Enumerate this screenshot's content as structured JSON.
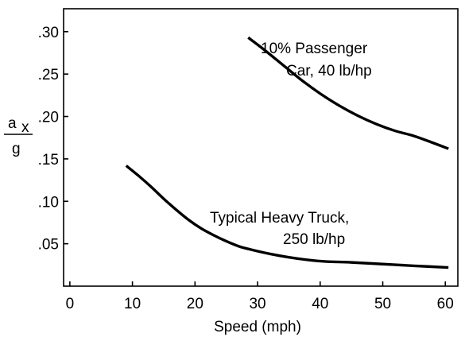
{
  "chart_data": {
    "type": "line",
    "title": "",
    "xlabel": "Speed (mph)",
    "ylabel": {
      "numerator": "a",
      "subscript": "x",
      "denominator": "g"
    },
    "xlim": [
      -1,
      62
    ],
    "ylim": [
      0,
      0.327
    ],
    "x_ticks": [
      {
        "value": 0,
        "label": "0"
      },
      {
        "value": 10,
        "label": "10"
      },
      {
        "value": 20,
        "label": "20"
      },
      {
        "value": 30,
        "label": "30"
      },
      {
        "value": 40,
        "label": "40"
      },
      {
        "value": 50,
        "label": "50"
      },
      {
        "value": 60,
        "label": "60"
      }
    ],
    "y_ticks": [
      {
        "value": 0.05,
        "label": ".05"
      },
      {
        "value": 0.1,
        "label": ".10"
      },
      {
        "value": 0.15,
        "label": ".15"
      },
      {
        "value": 0.2,
        "label": ".20"
      },
      {
        "value": 0.25,
        "label": ".25"
      },
      {
        "value": 0.3,
        "label": ".30"
      }
    ],
    "grid": false,
    "legend": "none",
    "series": [
      {
        "x": [
          28.5,
          31,
          34,
          37,
          40,
          43,
          46,
          49,
          52,
          55,
          58,
          60.5
        ],
        "y": [
          0.293,
          0.279,
          0.261,
          0.243,
          0.227,
          0.213,
          0.201,
          0.191,
          0.183,
          0.177,
          0.169,
          0.162
        ]
      },
      {
        "x": [
          9,
          11,
          13,
          15,
          17,
          19,
          21,
          23,
          25,
          27,
          29,
          32,
          35,
          38,
          41,
          45,
          50,
          55,
          60.5
        ],
        "y": [
          0.142,
          0.13,
          0.117,
          0.103,
          0.09,
          0.078,
          0.068,
          0.06,
          0.053,
          0.047,
          0.043,
          0.038,
          0.034,
          0.031,
          0.029,
          0.028,
          0.026,
          0.024,
          0.022
        ]
      }
    ],
    "annotations": [
      {
        "lines": [
          "10% Passenger",
          "Car, 40 lb/hp"
        ]
      },
      {
        "lines": [
          "Typical Heavy Truck,",
          "250 lb/hp"
        ]
      }
    ]
  }
}
